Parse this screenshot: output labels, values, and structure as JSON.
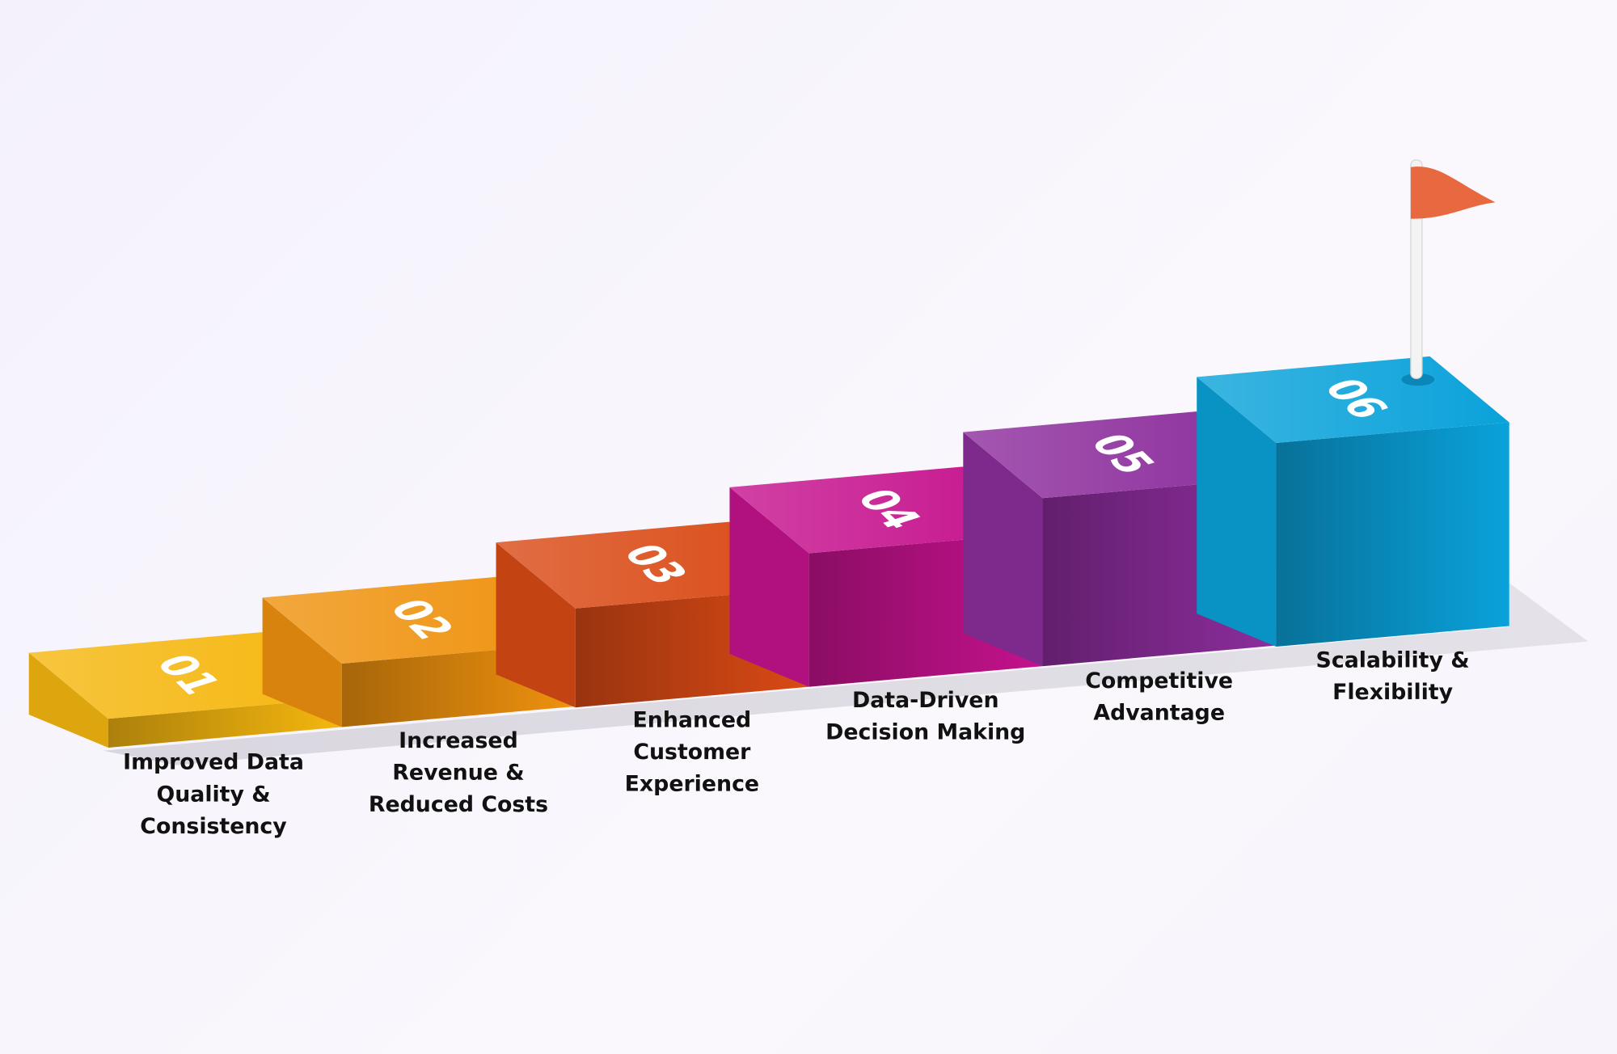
{
  "steps": [
    {
      "number": "01",
      "label": [
        "Improved Data",
        "Quality &",
        "Consistency"
      ],
      "color": "#f5b70f"
    },
    {
      "number": "02",
      "label": [
        "Increased",
        "Revenue &",
        "Reduced Costs"
      ],
      "color": "#ef920e"
    },
    {
      "number": "03",
      "label": [
        "Enhanced",
        "Customer",
        "Experience"
      ],
      "color": "#da4a15"
    },
    {
      "number": "04",
      "label": [
        "Data-Driven",
        "Decision Making"
      ],
      "color": "#c5128d"
    },
    {
      "number": "05",
      "label": [
        "Competitive",
        "Advantage"
      ],
      "color": "#8c2d9c"
    },
    {
      "number": "06",
      "label": [
        "Scalability &",
        "Flexibility"
      ],
      "color": "#0aa2da"
    }
  ],
  "flag": {
    "color": "#e8683f",
    "icon": "flag-icon"
  }
}
